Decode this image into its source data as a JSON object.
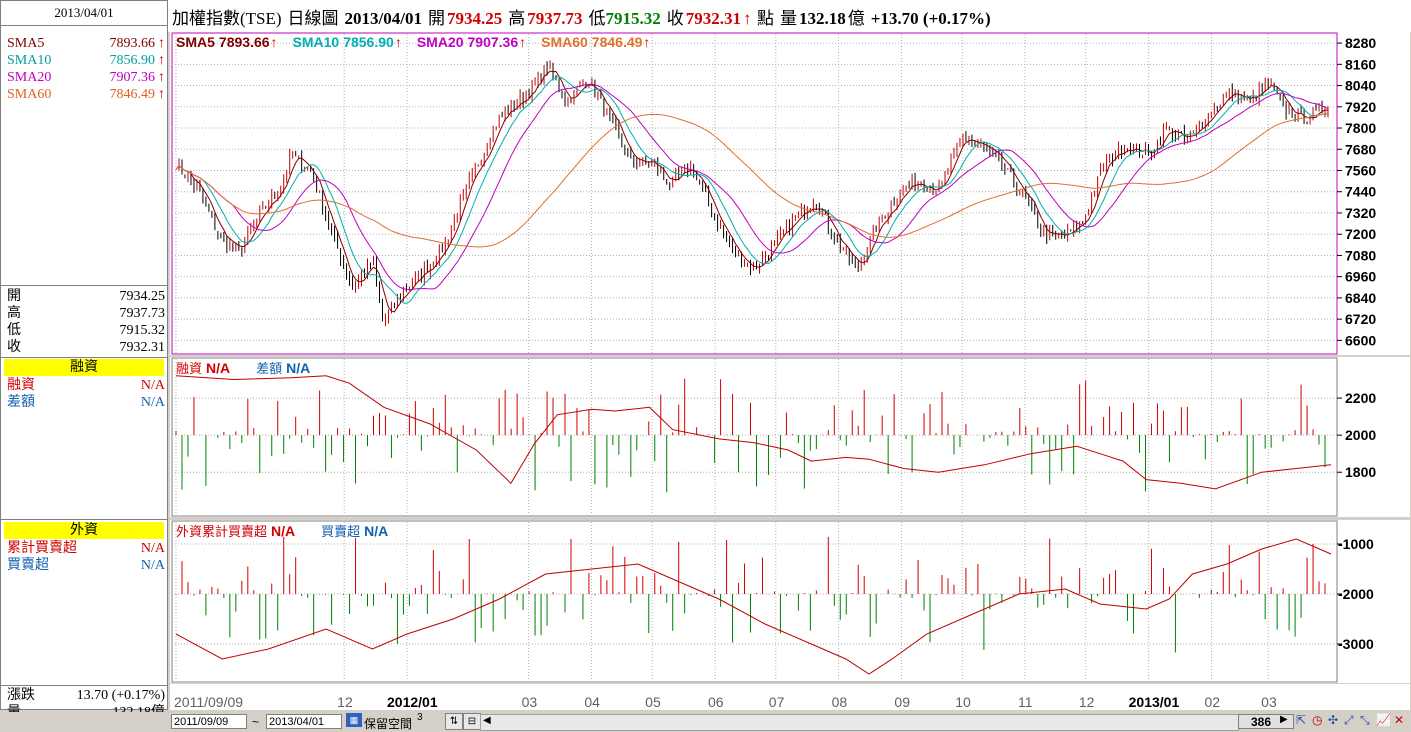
{
  "header": {
    "name": "加權指數(TSE)",
    "period": "日線圖",
    "date": "2013/04/01",
    "open_label": "開",
    "open": "7934.25",
    "high_label": "高",
    "high": "7937.73",
    "low_label": "低",
    "low": "7915.32",
    "close_label": "收",
    "close": "7932.31",
    "unit": "點",
    "volume_label": "量",
    "volume": "132.18",
    "volume_unit": "億",
    "change": "+13.70 (+0.17%)"
  },
  "left_panel": {
    "date": "2013/04/01",
    "sma": [
      {
        "label": "SMA5",
        "value": "7893.66",
        "color": "#800000"
      },
      {
        "label": "SMA10",
        "value": "7856.90",
        "color": "#00a0a0"
      },
      {
        "label": "SMA20",
        "value": "7907.36",
        "color": "#c000c0"
      },
      {
        "label": "SMA60",
        "value": "7846.49",
        "color": "#e06020"
      }
    ],
    "ohlc": [
      {
        "label": "開",
        "value": "7934.25"
      },
      {
        "label": "高",
        "value": "7937.73"
      },
      {
        "label": "低",
        "value": "7915.32"
      },
      {
        "label": "收",
        "value": "7932.31"
      }
    ],
    "margin_title": "融資",
    "margin_rows": [
      {
        "label": "融資",
        "value": "N/A"
      },
      {
        "label": "差額",
        "value": "N/A"
      }
    ],
    "foreign_title": "外資",
    "foreign_rows": [
      {
        "label": "累計買賣超",
        "value": "N/A"
      },
      {
        "label": "買賣超",
        "value": "N/A"
      }
    ],
    "change_label": "漲跌",
    "change_value": "13.70 (+0.17%)",
    "volume_label": "量",
    "volume_value": "132.18億"
  },
  "price_legend": [
    {
      "label": "SMA5",
      "value": "7893.66",
      "color": "#800000"
    },
    {
      "label": "SMA10",
      "value": "7856.90",
      "color": "#00b0b0"
    },
    {
      "label": "SMA20",
      "value": "7907.36",
      "color": "#c000c0"
    },
    {
      "label": "SMA60",
      "value": "7846.49",
      "color": "#e07030"
    }
  ],
  "margin_legend": [
    {
      "label": "融資",
      "value": "N/A",
      "color": "#d00000"
    },
    {
      "label": "差額",
      "value": "N/A",
      "color": "#1060b0"
    }
  ],
  "foreign_legend": [
    {
      "label": "外資累計買賣超",
      "value": "N/A",
      "color": "#d00000"
    },
    {
      "label": "買賣超",
      "value": "N/A",
      "color": "#1060b0"
    }
  ],
  "colors": {
    "up": "#d00000",
    "down": "#008000",
    "candle_up": "#c00000",
    "candle_down": "#000000",
    "panel_border_active": "#c000c0"
  },
  "bottom": {
    "from_date": "2011/09/09",
    "tilde": "~",
    "to_date": "2013/04/01",
    "reserve_label": "保留空間",
    "reserve_value": "3",
    "bar_count": "386"
  },
  "chart_data": [
    {
      "type": "candlestick",
      "title": "加權指數(TSE) 日線圖",
      "x_ticks": [
        "2011/09/09",
        "12",
        "2012/01",
        "03",
        "04",
        "05",
        "06",
        "07",
        "08",
        "09",
        "10",
        "11",
        "12",
        "2013/01",
        "02",
        "03"
      ],
      "y_ticks": [
        6600,
        6720,
        6840,
        6960,
        7080,
        7200,
        7320,
        7440,
        7560,
        7680,
        7800,
        7920,
        8040,
        8160,
        8280
      ],
      "ylim": [
        6540,
        8320
      ],
      "close_trend": [
        [
          "2011/09/09",
          7600
        ],
        [
          "2011/09/20",
          7450
        ],
        [
          "2011/09/30",
          7200
        ],
        [
          "2011/10/10",
          7100
        ],
        [
          "2011/10/20",
          7300
        ],
        [
          "2011/10/31",
          7480
        ],
        [
          "2011/11/05",
          7650
        ],
        [
          "2011/11/15",
          7550
        ],
        [
          "2011/11/25",
          7200
        ],
        [
          "2011/12/05",
          6900
        ],
        [
          "2011/12/15",
          7050
        ],
        [
          "2011/12/20",
          6700
        ],
        [
          "2011/12/30",
          6880
        ],
        [
          "2012/01/10",
          7000
        ],
        [
          "2012/01/20",
          7150
        ],
        [
          "2012/02/01",
          7500
        ],
        [
          "2012/02/15",
          7850
        ],
        [
          "2012/03/01",
          8000
        ],
        [
          "2012/03/10",
          8150
        ],
        [
          "2012/03/20",
          7950
        ],
        [
          "2012/03/30",
          8080
        ],
        [
          "2012/04/10",
          7850
        ],
        [
          "2012/04/20",
          7620
        ],
        [
          "2012/05/01",
          7600
        ],
        [
          "2012/05/10",
          7480
        ],
        [
          "2012/05/20",
          7580
        ],
        [
          "2012/06/01",
          7300
        ],
        [
          "2012/06/10",
          7100
        ],
        [
          "2012/06/20",
          7000
        ],
        [
          "2012/07/01",
          7150
        ],
        [
          "2012/07/10",
          7280
        ],
        [
          "2012/07/20",
          7400
        ],
        [
          "2012/08/01",
          7150
        ],
        [
          "2012/08/10",
          7000
        ],
        [
          "2012/08/20",
          7250
        ],
        [
          "2012/09/01",
          7450
        ],
        [
          "2012/09/10",
          7500
        ],
        [
          "2012/09/20",
          7450
        ],
        [
          "2012/10/01",
          7750
        ],
        [
          "2012/10/10",
          7700
        ],
        [
          "2012/10/20",
          7600
        ],
        [
          "2012/11/01",
          7400
        ],
        [
          "2012/11/10",
          7200
        ],
        [
          "2012/11/20",
          7180
        ],
        [
          "2012/11/30",
          7280
        ],
        [
          "2012/12/10",
          7600
        ],
        [
          "2012/12/20",
          7700
        ],
        [
          "2013/01/01",
          7650
        ],
        [
          "2013/01/10",
          7800
        ],
        [
          "2013/01/20",
          7720
        ],
        [
          "2013/02/01",
          7900
        ],
        [
          "2013/02/10",
          8000
        ],
        [
          "2013/02/20",
          7950
        ],
        [
          "2013/03/01",
          8050
        ],
        [
          "2013/03/10",
          7900
        ],
        [
          "2013/03/20",
          7850
        ],
        [
          "2013/04/01",
          7932
        ]
      ],
      "series": [
        {
          "name": "SMA5",
          "last": 7893.66
        },
        {
          "name": "SMA10",
          "last": 7856.9
        },
        {
          "name": "SMA20",
          "last": 7907.36
        },
        {
          "name": "SMA60",
          "last": 7846.49
        }
      ]
    },
    {
      "type": "bar+line",
      "title": "融資",
      "y_ticks": [
        1800,
        2000,
        2200
      ],
      "ylim": [
        1580,
        2400
      ],
      "line": [
        [
          0,
          2320
        ],
        [
          0.05,
          2300
        ],
        [
          0.1,
          2310
        ],
        [
          0.13,
          2320
        ],
        [
          0.15,
          2280
        ],
        [
          0.18,
          2150
        ],
        [
          0.22,
          2060
        ],
        [
          0.26,
          1920
        ],
        [
          0.29,
          1740
        ],
        [
          0.31,
          1950
        ],
        [
          0.33,
          2110
        ],
        [
          0.36,
          2140
        ],
        [
          0.38,
          2130
        ],
        [
          0.41,
          2150
        ],
        [
          0.43,
          2030
        ],
        [
          0.47,
          1980
        ],
        [
          0.5,
          1960
        ],
        [
          0.53,
          1920
        ],
        [
          0.55,
          1860
        ],
        [
          0.58,
          1880
        ],
        [
          0.6,
          1870
        ],
        [
          0.63,
          1820
        ],
        [
          0.66,
          1800
        ],
        [
          0.7,
          1840
        ],
        [
          0.74,
          1900
        ],
        [
          0.78,
          1940
        ],
        [
          0.8,
          1900
        ],
        [
          0.82,
          1860
        ],
        [
          0.84,
          1760
        ],
        [
          0.87,
          1740
        ],
        [
          0.9,
          1710
        ],
        [
          0.94,
          1800
        ],
        [
          0.97,
          1820
        ],
        [
          1.0,
          1840
        ]
      ],
      "bars_note": "daily 差額 bars around 2000"
    },
    {
      "type": "bar+line",
      "title": "外資累計買賣超",
      "y_ticks": [
        -3000,
        -2000,
        -1000
      ],
      "ylim": [
        -3700,
        -600
      ],
      "line": [
        [
          0,
          -2800
        ],
        [
          0.04,
          -3300
        ],
        [
          0.08,
          -3100
        ],
        [
          0.13,
          -2700
        ],
        [
          0.17,
          -3100
        ],
        [
          0.2,
          -2800
        ],
        [
          0.24,
          -2500
        ],
        [
          0.28,
          -2100
        ],
        [
          0.32,
          -1600
        ],
        [
          0.36,
          -1500
        ],
        [
          0.4,
          -1400
        ],
        [
          0.43,
          -1700
        ],
        [
          0.47,
          -2100
        ],
        [
          0.51,
          -2600
        ],
        [
          0.55,
          -3000
        ],
        [
          0.58,
          -3300
        ],
        [
          0.6,
          -3600
        ],
        [
          0.62,
          -3300
        ],
        [
          0.65,
          -2800
        ],
        [
          0.69,
          -2400
        ],
        [
          0.73,
          -2000
        ],
        [
          0.77,
          -1900
        ],
        [
          0.8,
          -2200
        ],
        [
          0.84,
          -2300
        ],
        [
          0.86,
          -2100
        ],
        [
          0.88,
          -1600
        ],
        [
          0.91,
          -1400
        ],
        [
          0.94,
          -1100
        ],
        [
          0.97,
          -900
        ],
        [
          1.0,
          -1200
        ]
      ],
      "bars_note": "daily 買賣超 bars around -2000"
    }
  ]
}
